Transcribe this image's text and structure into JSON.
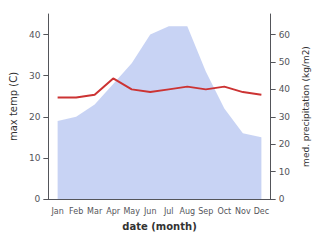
{
  "chart_data": {
    "type": "line",
    "categories": [
      "Jan",
      "Feb",
      "Mar",
      "Apr",
      "May",
      "Jun",
      "Jul",
      "Aug",
      "Sep",
      "Oct",
      "Nov",
      "Dec"
    ],
    "xlabel": "date (month)",
    "ylabel": "max temp (C)",
    "y2label": "med. precipitation (kg/m2)",
    "ylim": [
      0,
      45
    ],
    "yticks": [
      0,
      10,
      20,
      30,
      40
    ],
    "y2lim": [
      0,
      67.5
    ],
    "y2ticks": [
      0,
      10,
      20,
      30,
      40,
      50,
      60
    ],
    "grid": false,
    "series": [
      {
        "type": "area",
        "color": "#aabbee",
        "values": [
          19,
          20,
          23,
          28,
          33,
          40,
          42,
          42,
          31,
          22,
          16,
          15
        ]
      },
      {
        "type": "line",
        "color": "#cc3333",
        "axis": "y2",
        "values": [
          37,
          37,
          38,
          44,
          40,
          39,
          40,
          41,
          40,
          41,
          39,
          38
        ]
      }
    ]
  }
}
